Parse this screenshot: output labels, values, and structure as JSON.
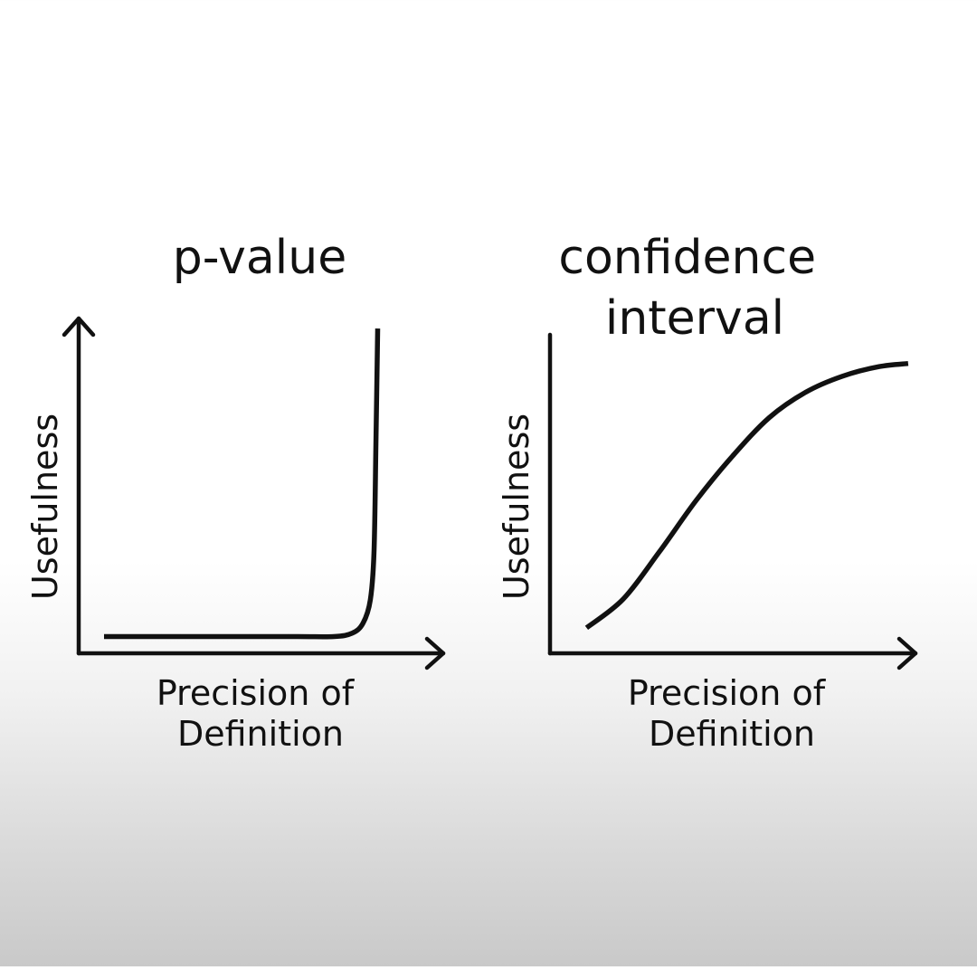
{
  "chart_data": [
    {
      "type": "line",
      "title": "p-value",
      "xlabel": "Precision of Definition",
      "ylabel": "Usefulness",
      "ticks": "none",
      "grid": false,
      "curve_shape": "flat near zero, then sharp vertical rise at the high-precision end",
      "x": [
        0.0,
        0.2,
        0.4,
        0.6,
        0.7,
        0.75,
        0.78,
        0.8,
        0.81,
        0.815,
        0.82
      ],
      "y": [
        0.05,
        0.05,
        0.05,
        0.05,
        0.05,
        0.06,
        0.09,
        0.16,
        0.3,
        0.6,
        0.97
      ],
      "xlim": [
        0,
        1
      ],
      "ylim": [
        0,
        1
      ],
      "line_color": "#111111"
    },
    {
      "type": "line",
      "title": "confidence interval",
      "xlabel": "Precision of Definition",
      "ylabel": "Usefulness",
      "ticks": "none",
      "grid": false,
      "curve_shape": "S-shaped rise that levels off near the top",
      "x": [
        0.1,
        0.2,
        0.3,
        0.4,
        0.5,
        0.6,
        0.7,
        0.8,
        0.9,
        0.98
      ],
      "y": [
        0.08,
        0.17,
        0.32,
        0.48,
        0.62,
        0.74,
        0.82,
        0.87,
        0.9,
        0.91
      ],
      "xlim": [
        0,
        1
      ],
      "ylim": [
        0,
        1
      ],
      "line_color": "#111111"
    }
  ]
}
